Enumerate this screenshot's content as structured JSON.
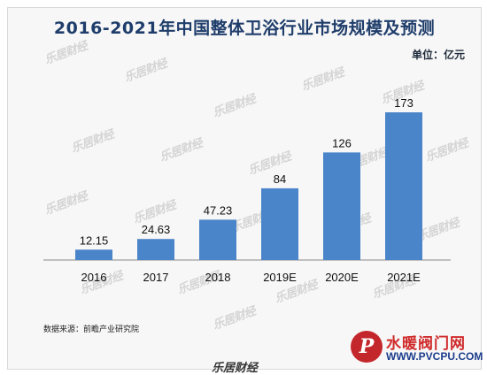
{
  "header": {
    "title": "2016-2021年中国整体卫浴行业市场规模及预测",
    "unit": "单位：亿元"
  },
  "footer": {
    "source": "数据来源：前瞻产业研究院",
    "brand": "乐居财经"
  },
  "watermark": {
    "text": "乐居财经"
  },
  "site_logo": {
    "badge": "P",
    "name": "水暖阀门网",
    "url": "WWW.PVCPU.COM",
    "colors": {
      "badge": "#c4272b",
      "name": "#d02a2a",
      "url": "#1c3d8c"
    }
  },
  "chart_data": {
    "type": "bar",
    "title": "2016-2021年中国整体卫浴行业市场规模及预测",
    "categories": [
      "2016",
      "2017",
      "2018",
      "2019E",
      "2020E",
      "2021E"
    ],
    "values": [
      12.15,
      24.63,
      47.23,
      84,
      126,
      173
    ],
    "data_labels": [
      "12.15",
      "24.63",
      "47.23",
      "84",
      "126",
      "173"
    ],
    "xlabel": "",
    "ylabel": "",
    "ylim": [
      0,
      173
    ],
    "grid": false,
    "legend": "none",
    "colors": {
      "bar": "#4a84c9",
      "axis": "#8a8a8a",
      "text": "#111111"
    }
  }
}
